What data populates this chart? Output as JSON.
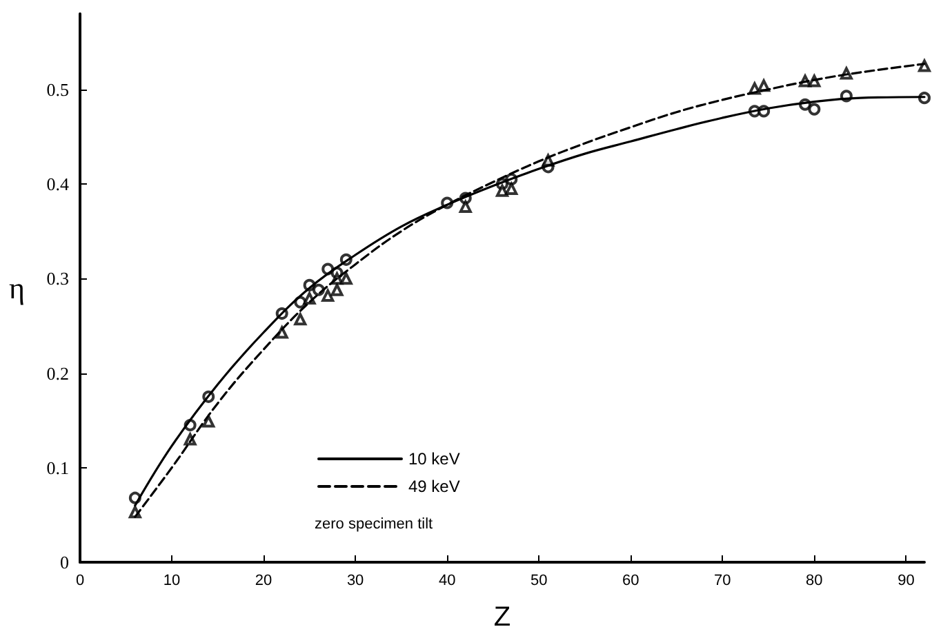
{
  "chart_data": {
    "type": "line",
    "xlabel": "Z",
    "ylabel": "η",
    "annotations": [
      "zero specimen tilt"
    ],
    "xlim": [
      0,
      92
    ],
    "xticks": [
      0,
      10,
      20,
      30,
      40,
      50,
      60,
      70,
      80,
      90
    ],
    "ylim": [
      0,
      0.58
    ],
    "yticks": [
      0,
      0.1,
      0.2,
      0.3,
      0.4,
      0.5
    ],
    "grid": false,
    "legend": "bottom left",
    "series": [
      {
        "name": "10 keV",
        "color": "#000000",
        "line_style": "solid",
        "marker": "none",
        "x": [
          6,
          10,
          15,
          20,
          25,
          30,
          35,
          40,
          45,
          50,
          55,
          60,
          65,
          70,
          75,
          80,
          85,
          92
        ],
        "values": [
          0.06,
          0.123,
          0.188,
          0.243,
          0.29,
          0.325,
          0.355,
          0.378,
          0.398,
          0.416,
          0.432,
          0.445,
          0.458,
          0.47,
          0.48,
          0.487,
          0.491,
          0.492
        ]
      },
      {
        "name": "49 keV",
        "color": "#000000",
        "line_style": "dashed",
        "marker": "none",
        "x": [
          6,
          10,
          15,
          20,
          25,
          30,
          35,
          40,
          45,
          50,
          55,
          60,
          65,
          70,
          75,
          80,
          85,
          92
        ],
        "values": [
          0.048,
          0.1,
          0.168,
          0.225,
          0.275,
          0.315,
          0.35,
          0.378,
          0.402,
          0.424,
          0.443,
          0.46,
          0.476,
          0.489,
          0.5,
          0.51,
          0.518,
          0.527
        ]
      },
      {
        "type": "scatter",
        "color": "#000000",
        "marker": "circle",
        "x": [
          6,
          12,
          14,
          22,
          24,
          25,
          26,
          27,
          28,
          29,
          40,
          42,
          46,
          47,
          51,
          73.5,
          74.5,
          79,
          80,
          83.5,
          92
        ],
        "values": [
          0.068,
          0.145,
          0.175,
          0.263,
          0.275,
          0.293,
          0.288,
          0.31,
          0.306,
          0.32,
          0.38,
          0.385,
          0.4,
          0.405,
          0.418,
          0.477,
          0.477,
          0.484,
          0.479,
          0.493,
          0.491
        ]
      },
      {
        "type": "scatter",
        "color": "#000000",
        "marker": "triangle",
        "x": [
          6,
          12,
          14,
          22,
          24,
          25,
          27,
          28,
          28,
          29,
          42,
          46,
          47,
          51,
          73.5,
          74.5,
          79,
          80,
          83.5,
          92
        ],
        "values": [
          0.053,
          0.13,
          0.149,
          0.243,
          0.257,
          0.279,
          0.282,
          0.288,
          0.3,
          0.3,
          0.376,
          0.393,
          0.395,
          0.425,
          0.501,
          0.504,
          0.509,
          0.509,
          0.517,
          0.525
        ]
      }
    ]
  }
}
